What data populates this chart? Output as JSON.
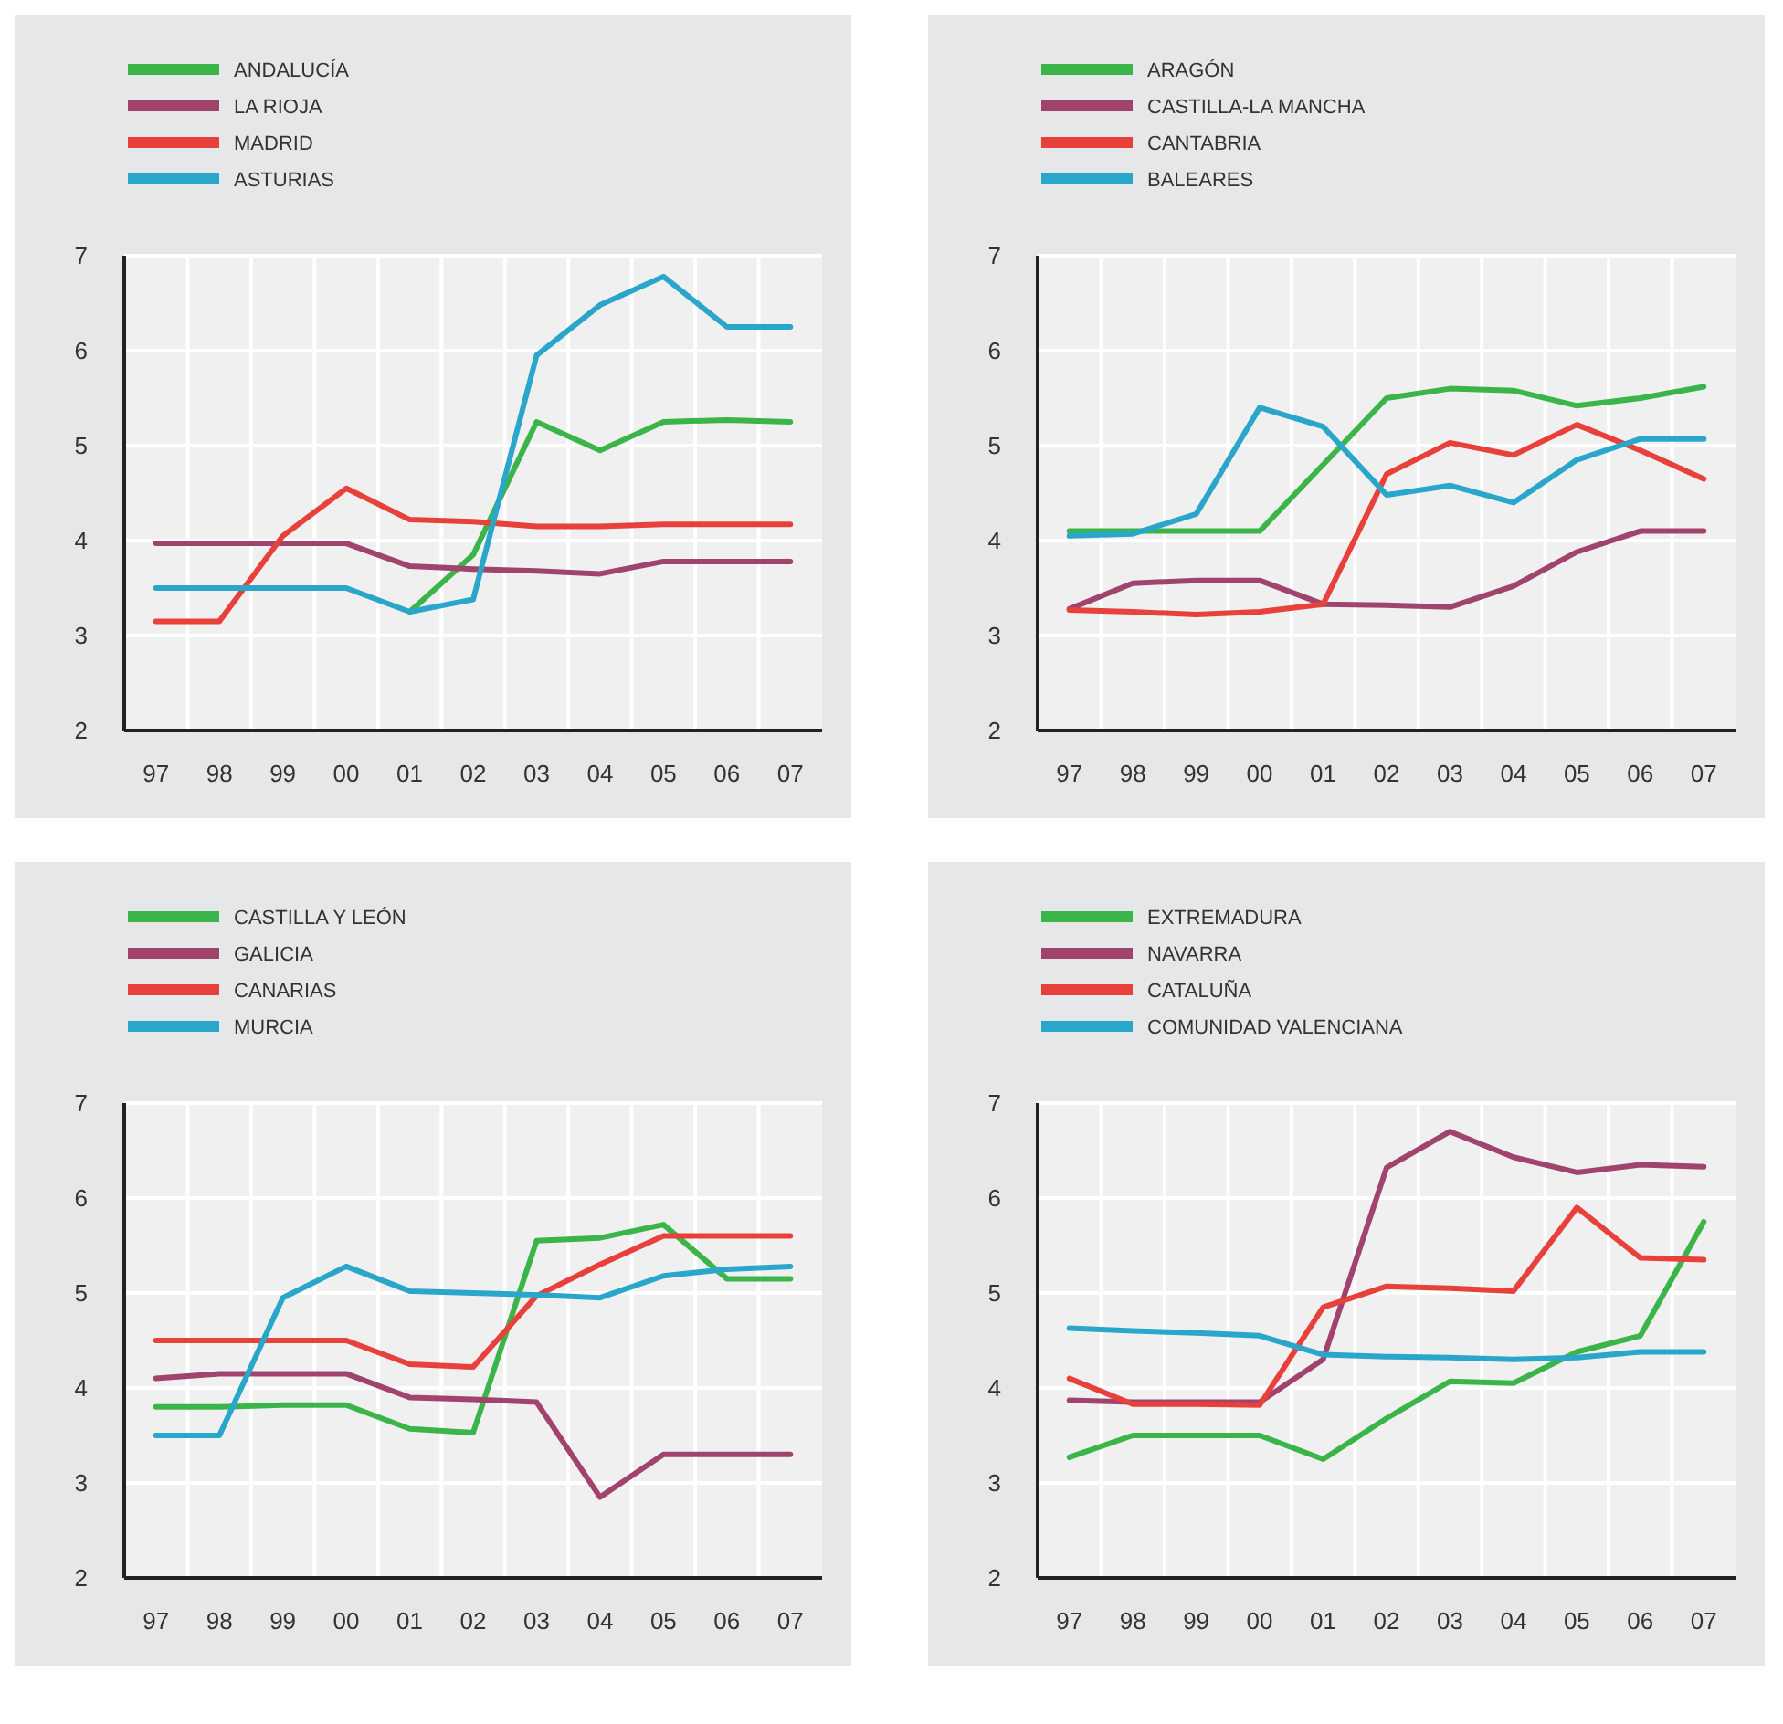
{
  "chart_data": [
    {
      "type": "line",
      "categories": [
        "97",
        "98",
        "99",
        "00",
        "01",
        "02",
        "03",
        "04",
        "05",
        "06",
        "07"
      ],
      "ylim": [
        2,
        7
      ],
      "yticks": [
        2,
        3,
        4,
        5,
        6,
        7
      ],
      "grid": true,
      "legend": "top left",
      "series": [
        {
          "name": "ANDALUCÍA",
          "color": "#3bb54a",
          "values": [
            null,
            null,
            null,
            null,
            3.25,
            3.85,
            5.25,
            4.95,
            5.25,
            5.27,
            5.25
          ]
        },
        {
          "name": "LA RIOJA",
          "color": "#a0446e",
          "values": [
            3.97,
            3.97,
            3.97,
            3.97,
            3.73,
            3.7,
            3.68,
            3.65,
            3.78,
            3.78,
            3.78
          ]
        },
        {
          "name": "MADRID",
          "color": "#e8403a",
          "values": [
            3.15,
            3.15,
            4.05,
            4.55,
            4.22,
            4.2,
            4.15,
            4.15,
            4.17,
            4.17,
            4.17
          ]
        },
        {
          "name": "ASTURIAS",
          "color": "#2ba6cb",
          "values": [
            3.5,
            3.5,
            3.5,
            3.5,
            3.25,
            3.38,
            5.95,
            6.48,
            6.78,
            6.25,
            6.25
          ]
        }
      ]
    },
    {
      "type": "line",
      "categories": [
        "97",
        "98",
        "99",
        "00",
        "01",
        "02",
        "03",
        "04",
        "05",
        "06",
        "07"
      ],
      "ylim": [
        2,
        7
      ],
      "yticks": [
        2,
        3,
        4,
        5,
        6,
        7
      ],
      "grid": true,
      "legend": "top left",
      "series": [
        {
          "name": "ARAGÓN",
          "color": "#3bb54a",
          "values": [
            4.1,
            4.1,
            4.1,
            4.1,
            4.8,
            5.5,
            5.6,
            5.58,
            5.42,
            5.5,
            5.62
          ]
        },
        {
          "name": "CASTILLA-LA MANCHA",
          "color": "#a0446e",
          "values": [
            3.28,
            3.55,
            3.58,
            3.58,
            3.33,
            3.32,
            3.3,
            3.52,
            3.88,
            4.1,
            4.1
          ]
        },
        {
          "name": "CANTABRIA",
          "color": "#e8403a",
          "values": [
            3.27,
            3.25,
            3.22,
            3.25,
            3.33,
            4.7,
            5.03,
            4.9,
            5.22,
            4.95,
            4.65
          ]
        },
        {
          "name": "BALEARES",
          "color": "#2ba6cb",
          "values": [
            4.05,
            4.07,
            4.28,
            5.4,
            5.2,
            4.48,
            4.58,
            4.4,
            4.85,
            5.07,
            5.07
          ]
        }
      ]
    },
    {
      "type": "line",
      "categories": [
        "97",
        "98",
        "99",
        "00",
        "01",
        "02",
        "03",
        "04",
        "05",
        "06",
        "07"
      ],
      "ylim": [
        2,
        7
      ],
      "yticks": [
        2,
        3,
        4,
        5,
        6,
        7
      ],
      "grid": true,
      "legend": "top left",
      "series": [
        {
          "name": "CASTILLA Y LEÓN",
          "color": "#3bb54a",
          "values": [
            3.8,
            3.8,
            3.82,
            3.82,
            3.57,
            3.53,
            5.55,
            5.58,
            5.72,
            5.15,
            5.15
          ]
        },
        {
          "name": "GALICIA",
          "color": "#a0446e",
          "values": [
            4.1,
            4.15,
            4.15,
            4.15,
            3.9,
            3.88,
            3.85,
            2.85,
            3.3,
            3.3,
            3.3
          ]
        },
        {
          "name": "CANARIAS",
          "color": "#e8403a",
          "values": [
            4.5,
            4.5,
            4.5,
            4.5,
            4.25,
            4.22,
            4.97,
            5.3,
            5.6,
            5.6,
            5.6
          ]
        },
        {
          "name": "MURCIA",
          "color": "#2ba6cb",
          "values": [
            3.5,
            3.5,
            4.95,
            5.28,
            5.02,
            5.0,
            4.98,
            4.95,
            5.18,
            5.25,
            5.28
          ]
        }
      ]
    },
    {
      "type": "line",
      "categories": [
        "97",
        "98",
        "99",
        "00",
        "01",
        "02",
        "03",
        "04",
        "05",
        "06",
        "07"
      ],
      "ylim": [
        2,
        7
      ],
      "yticks": [
        2,
        3,
        4,
        5,
        6,
        7
      ],
      "grid": true,
      "legend": "top left",
      "series": [
        {
          "name": "EXTREMADURA",
          "color": "#3bb54a",
          "values": [
            3.27,
            3.5,
            3.5,
            3.5,
            3.25,
            3.68,
            4.07,
            4.05,
            4.38,
            4.55,
            5.75
          ]
        },
        {
          "name": "NAVARRA",
          "color": "#a0446e",
          "values": [
            3.87,
            3.85,
            3.85,
            3.85,
            4.3,
            6.32,
            6.7,
            6.43,
            6.27,
            6.35,
            6.33
          ]
        },
        {
          "name": "CATALUÑA",
          "color": "#e8403a",
          "values": [
            4.1,
            3.83,
            3.83,
            3.82,
            4.85,
            5.07,
            5.05,
            5.02,
            5.9,
            5.37,
            5.35
          ]
        },
        {
          "name": "COMUNIDAD VALENCIANA",
          "color": "#2ba6cb",
          "values": [
            4.63,
            4.6,
            4.58,
            4.55,
            4.35,
            4.33,
            4.32,
            4.3,
            4.32,
            4.38,
            4.38
          ]
        }
      ]
    }
  ]
}
